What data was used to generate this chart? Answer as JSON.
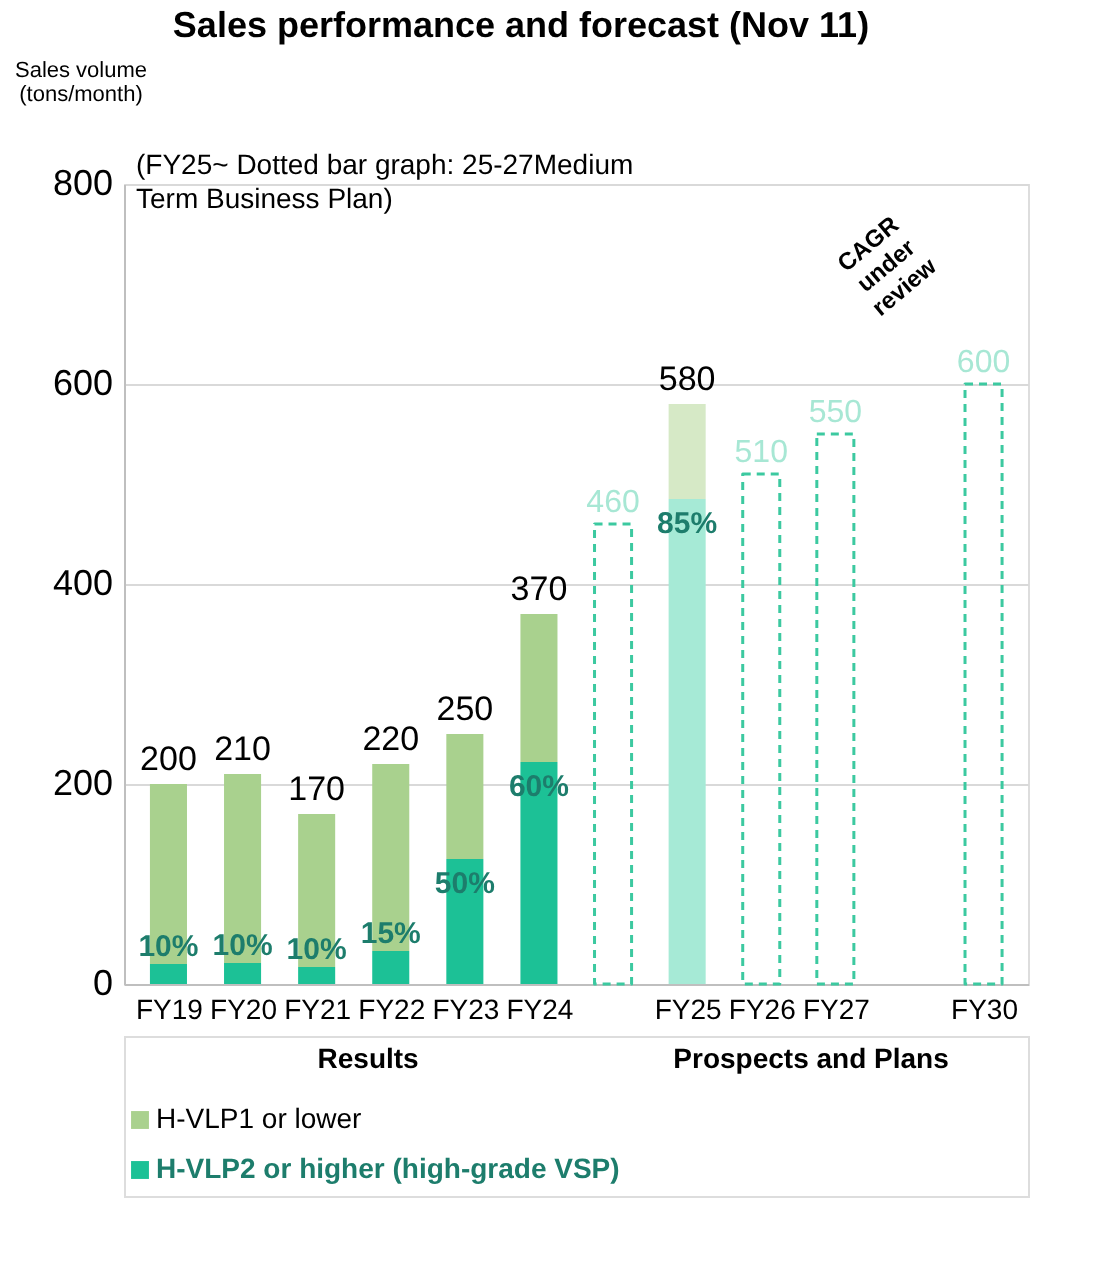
{
  "chart_data": {
    "type": "bar",
    "title": "Sales performance and forecast (Nov 11)",
    "ylabel": "Sales volume (tons/month)",
    "categories": [
      "FY19",
      "FY20",
      "FY21",
      "FY22",
      "FY23",
      "FY24",
      null,
      "FY25",
      "FY26",
      "FY27",
      null,
      "FY30"
    ],
    "series": [
      {
        "name": "H-VLP2 or higher (high-grade VSP)",
        "color": "#1cc196",
        "colors": [
          "#1cc196",
          "#1cc196",
          "#1cc196",
          "#1cc196",
          "#1cc196",
          "#1cc196",
          null,
          "#a6ead6",
          null,
          null,
          null,
          null
        ],
        "values": [
          20,
          21,
          17,
          33,
          125,
          222,
          null,
          485,
          null,
          null,
          null,
          null
        ]
      },
      {
        "name": "H-VLP1 or lower",
        "color": "#a9d18e",
        "colors": [
          "#a9d18e",
          "#a9d18e",
          "#a9d18e",
          "#a9d18e",
          "#a9d18e",
          "#a9d18e",
          null,
          "#d6e9c6",
          null,
          null,
          null,
          null
        ],
        "values": [
          180,
          189,
          153,
          187,
          125,
          148,
          null,
          95,
          null,
          null,
          null,
          null
        ]
      },
      {
        "type": "bar",
        "line_style": "dashed",
        "color": "#3cc9a0",
        "values": [
          null,
          null,
          null,
          null,
          null,
          null,
          460,
          null,
          510,
          550,
          null,
          600
        ],
        "value_labels": [
          null,
          null,
          null,
          null,
          null,
          null,
          "460",
          null,
          "510",
          "550",
          null,
          "600"
        ]
      }
    ],
    "stacked": true,
    "totals": [
      "200",
      "210",
      "170",
      "220",
      "250",
      "370",
      null,
      "580",
      null,
      null,
      null,
      null
    ],
    "ylim": [
      0,
      800
    ],
    "yticks": [
      0,
      200,
      400,
      600,
      800
    ],
    "grid": "y",
    "legend": "bottom left",
    "annotations": [
      "(FY25~ Dotted bar graph: 25-27Medium Term Business Plan)",
      "CAGR under review",
      "Results",
      "Prospects and Plans",
      {
        "text": "10%",
        "x": "FY19",
        "y": 20
      },
      {
        "text": "10%",
        "x": "FY20",
        "y": 21
      },
      {
        "text": "10%",
        "x": "FY21",
        "y": 17
      },
      {
        "text": "15%",
        "x": "FY22",
        "y": 33
      },
      {
        "text": "50%",
        "x": "FY23",
        "y": 125
      },
      {
        "text": "60%",
        "x": "FY24",
        "y": 222
      },
      {
        "text": "85%",
        "x": "FY25",
        "y": 485
      }
    ]
  }
}
